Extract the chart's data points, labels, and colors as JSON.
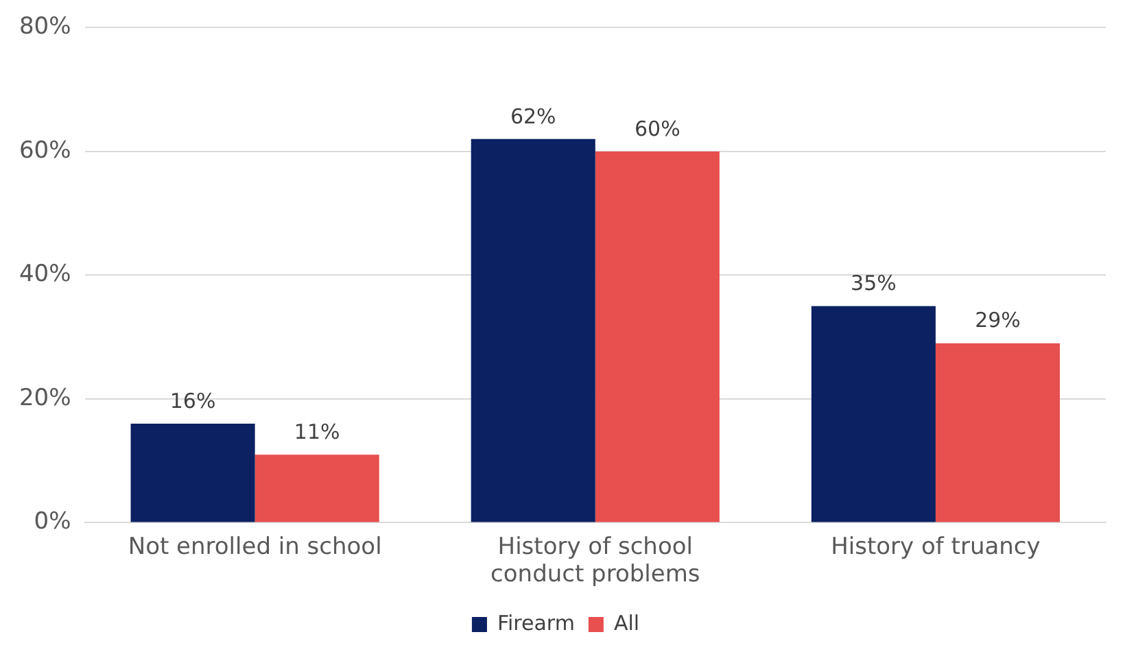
{
  "chart_data": {
    "type": "bar",
    "categories": [
      "Not enrolled in school",
      "History of school conduct problems",
      "History of truancy"
    ],
    "series": [
      {
        "name": "Firearm",
        "color": "#0b2161",
        "values": [
          16,
          62,
          35
        ],
        "value_labels": [
          "16%",
          "62%",
          "35%"
        ]
      },
      {
        "name": "All",
        "color": "#e84f4f",
        "values": [
          11,
          60,
          29
        ],
        "value_labels": [
          "11%",
          "60%",
          "29%"
        ]
      }
    ],
    "ylim": [
      0,
      80
    ],
    "yticks": [
      {
        "value": 0,
        "label": "0%"
      },
      {
        "value": 20,
        "label": "20%"
      },
      {
        "value": 40,
        "label": "40%"
      },
      {
        "value": 60,
        "label": "60%"
      },
      {
        "value": 80,
        "label": "80%"
      }
    ],
    "grid": "y",
    "legend": "bottom"
  }
}
